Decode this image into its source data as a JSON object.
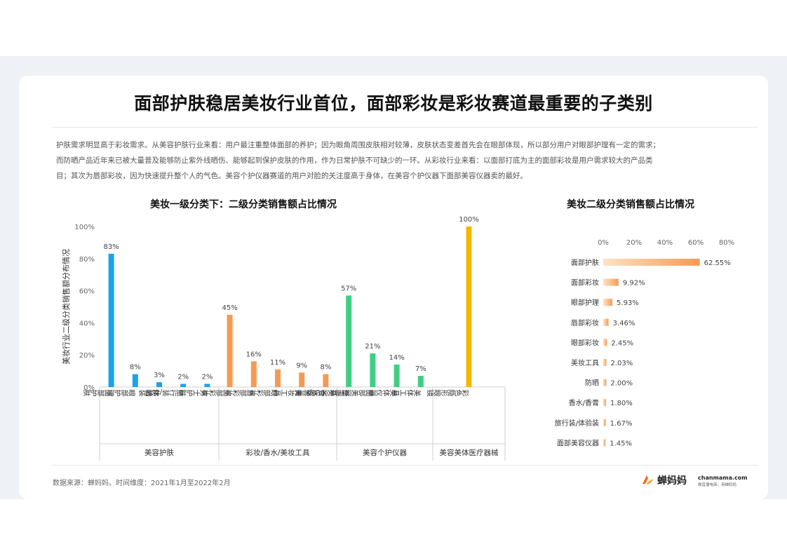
{
  "page": {
    "title": "面部护肤稳居美妆行业首位，面部彩妆是彩妆赛道最重要的子类别",
    "description_lines": [
      "护肤需求明显高于彩妆需求。从美容护肤行业来看：用户最注重整体面部的养护；因为眼角周围皮肤相对较薄，皮肤状态变差首先会在眼部体现，所以部分用户对眼部护理有一定的需求；",
      "而防晒产品近年来已被大量普及能够防止紫外线晒伤、能够起到保护皮肤的作用，作为日常护肤不可缺少的一环。从彩妆行业来看：以面部打底为主的面部彩妆是用户需求较大的产品类",
      "目；其次为唇部彩妆，因为快速提升整个人的气色。美容个护仪器赛道的用户对脸的关注度高于身体，在美容个护仪器下面部美容仪器卖的最好。"
    ],
    "source": "数据来源：蝉妈妈。时间维度：2021年1月至2022年2月",
    "logo": {
      "name": "蝉妈妈",
      "domain": "chanmama.com",
      "slogan": "做直播电商，用蝉妈妈"
    }
  },
  "chart_data": [
    {
      "type": "bar",
      "title": "美妆一级分类下：二级分类销售额占比情况",
      "ylabel": "美妆行业二级分类销售额分布情况",
      "ylim": [
        0,
        100
      ],
      "yticks": [
        "0%",
        "20%",
        "40%",
        "60%",
        "80%",
        "100%"
      ],
      "grid": false,
      "groups": [
        {
          "name": "美容护肤",
          "color": "#1aa3e8",
          "categories": [
            "面部护肤",
            "眼部护理",
            "防晒",
            "旅行装/体验装",
            "男士护肤"
          ],
          "values": [
            83,
            8,
            3,
            2,
            2
          ],
          "labels": [
            "83%",
            "8%",
            "3%",
            "2%",
            "2%"
          ]
        },
        {
          "name": "彩妆/香水/美妆工具",
          "color": "#f59a54",
          "categories": [
            "面部彩妆",
            "唇部彩妆",
            "眼部彩妆",
            "美妆工具",
            "香水/香膏"
          ],
          "values": [
            45,
            16,
            11,
            9,
            8
          ],
          "labels": [
            "45%",
            "16%",
            "11%",
            "9%",
            "8%"
          ]
        },
        {
          "name": "美容个护仪器",
          "color": "#3fcf84",
          "categories": [
            "面部美容仪器",
            "面部美容工具",
            "美体仪器",
            "美体工具"
          ],
          "values": [
            57,
            21,
            14,
            7
          ],
          "labels": [
            "57%",
            "21%",
            "14%",
            "7%"
          ]
        },
        {
          "name": "美容美体医疗器械",
          "color": "#f5b800",
          "categories": [
            "彩色隐形眼镜"
          ],
          "values": [
            100
          ],
          "labels": [
            "100%"
          ]
        }
      ]
    },
    {
      "type": "bar",
      "orientation": "horizontal",
      "title": "美妆二级分类销售额占比情况",
      "xlim": [
        0,
        80
      ],
      "xticks": [
        "0%",
        "20%",
        "40%",
        "60%",
        "80%"
      ],
      "grid": false,
      "color": "#f5b97a",
      "categories": [
        "面部护肤",
        "面部彩妆",
        "眼部护理",
        "唇部彩妆",
        "眼部彩妆",
        "美妆工具",
        "防晒",
        "香水/香膏",
        "旅行装/体验装",
        "面部美容仪器"
      ],
      "values": [
        62.55,
        9.92,
        5.93,
        3.46,
        2.45,
        2.03,
        2.0,
        1.8,
        1.67,
        1.45
      ],
      "labels": [
        "62.55%",
        "9.92%",
        "5.93%",
        "3.46%",
        "2.45%",
        "2.03%",
        "2.00%",
        "1.80%",
        "1.67%",
        "1.45%"
      ]
    }
  ]
}
